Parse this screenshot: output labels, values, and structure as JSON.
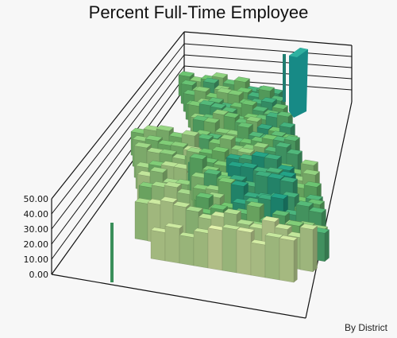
{
  "map": {
    "title": "Percent Full-Time Employee",
    "footnote": "By District",
    "z_axis": {
      "ticks": [
        "0.00",
        "10.00",
        "20.00",
        "30.00",
        "40.00",
        "50.00"
      ],
      "range": [
        0,
        50
      ]
    },
    "colors": {
      "low": "#dbe8a6",
      "mid": "#6fbf6b",
      "high": "#1f9a82",
      "peak": "#178a86"
    }
  }
}
